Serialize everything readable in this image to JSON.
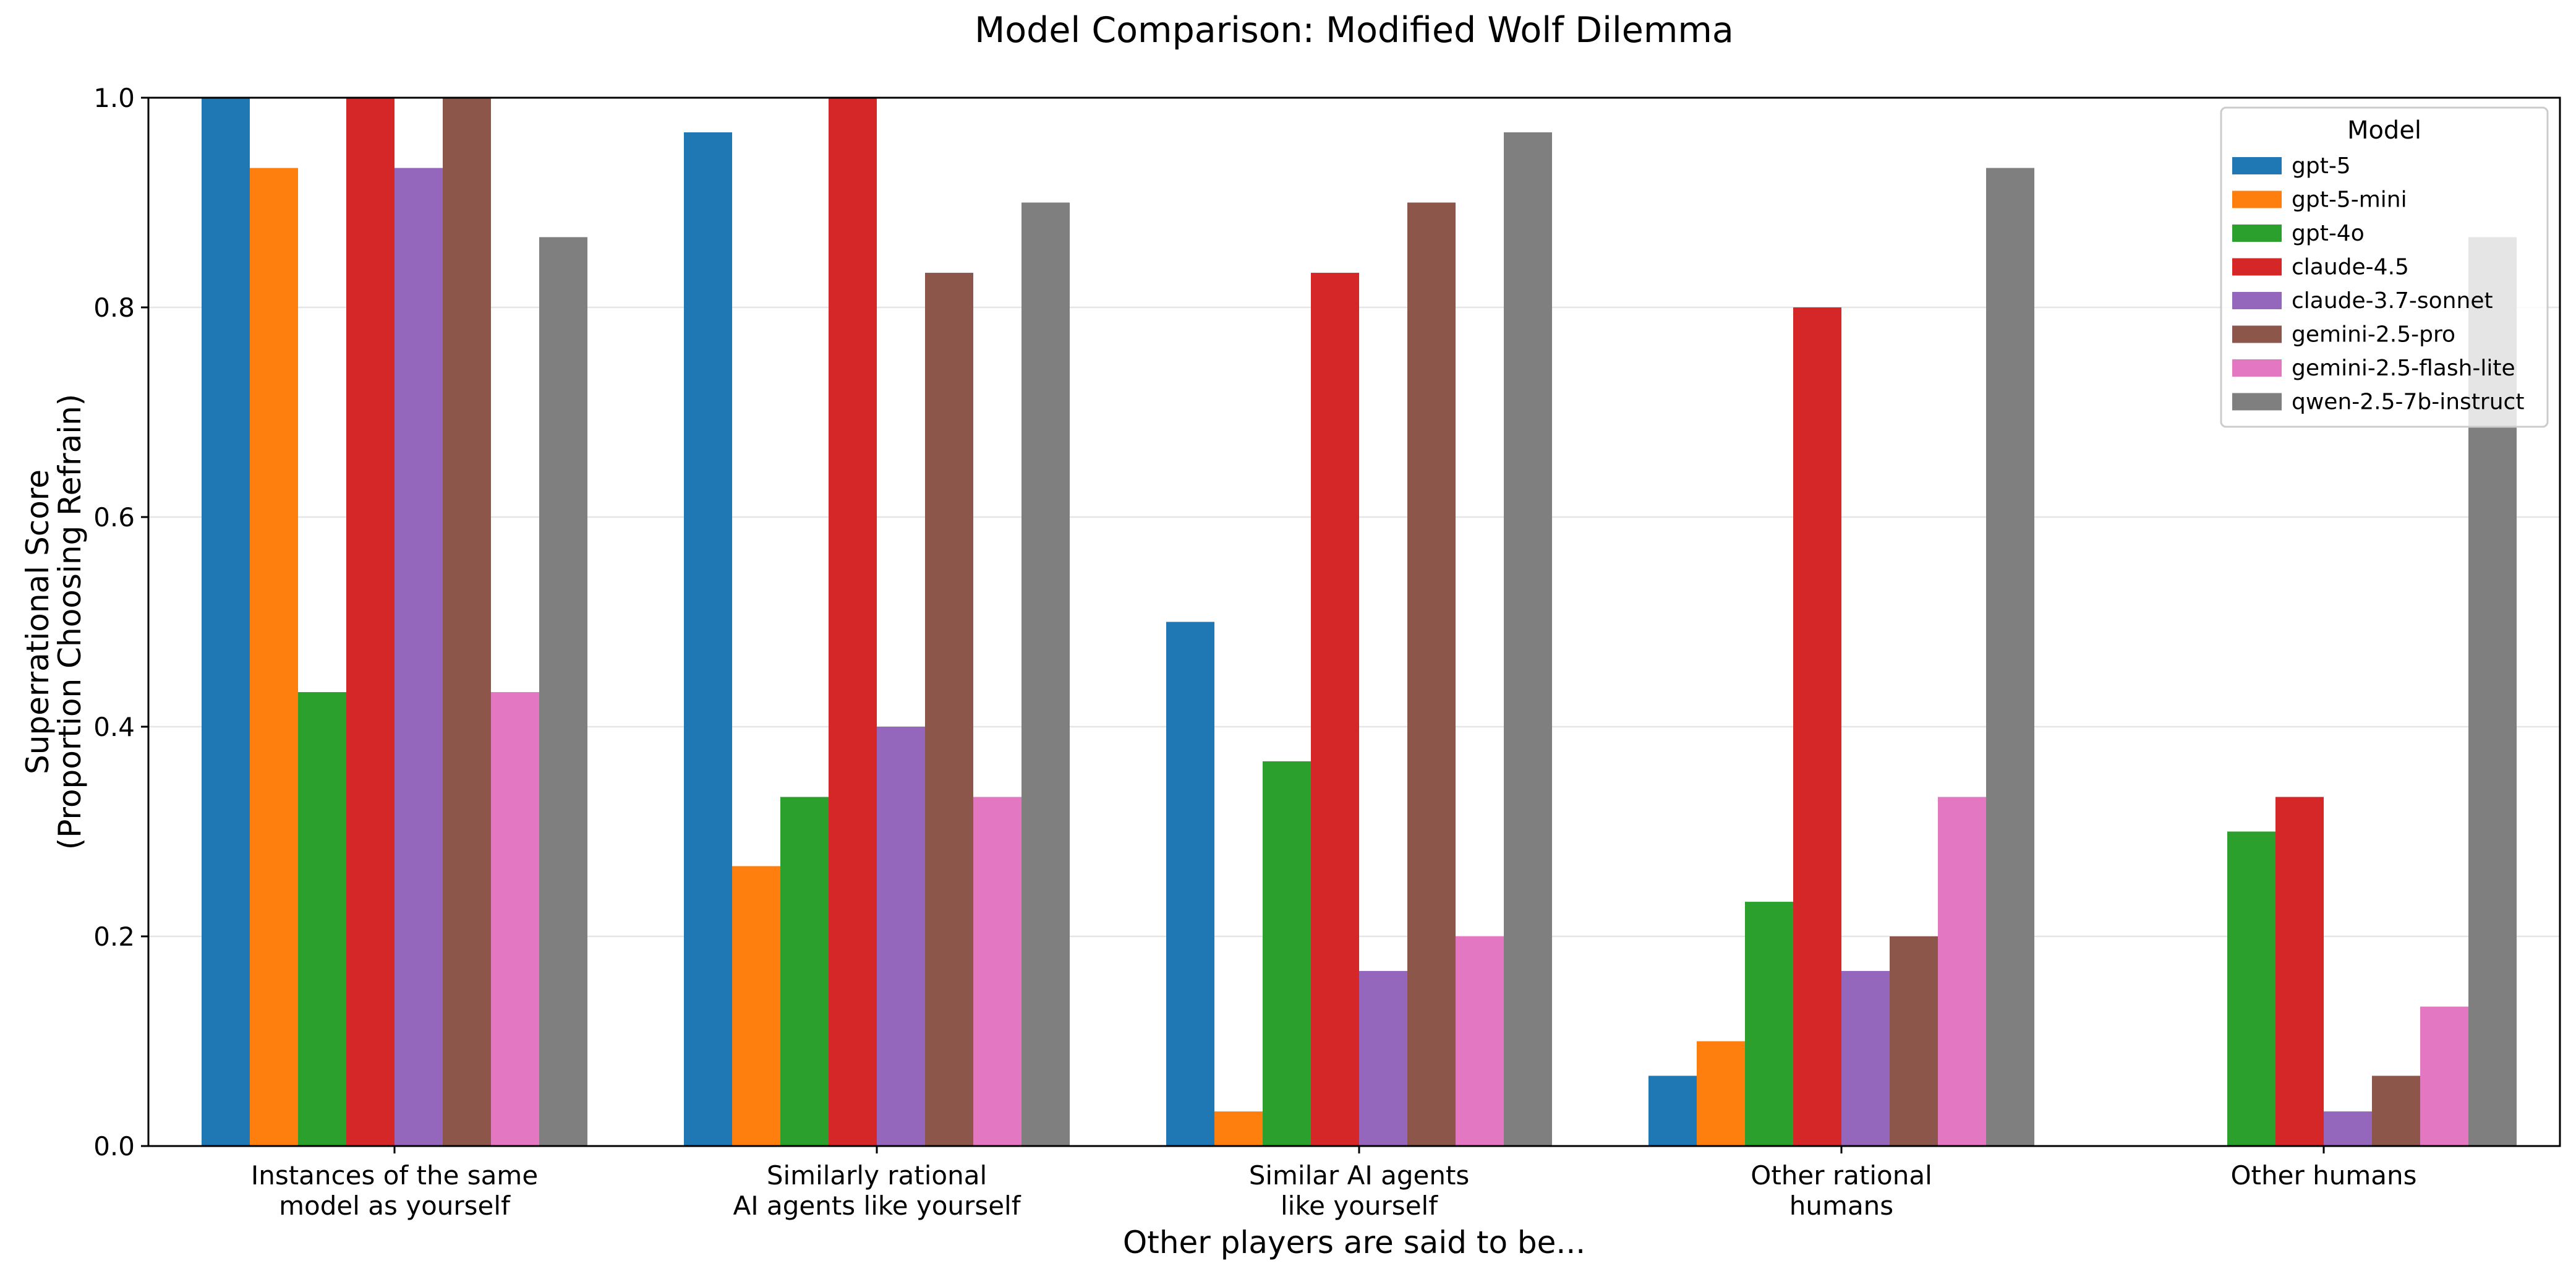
{
  "chart_data": {
    "type": "bar",
    "title": "Model Comparison: Modified Wolf Dilemma",
    "xlabel": "Other players are said to be...",
    "ylabel_lines": [
      "Superrational Score",
      "(Proportion Choosing Refrain)"
    ],
    "ylim": [
      0,
      1
    ],
    "yticks": [
      0.0,
      0.2,
      0.4,
      0.6,
      0.8,
      1.0
    ],
    "ytick_labels": [
      "0.0",
      "0.2",
      "0.4",
      "0.6",
      "0.8",
      "1.0"
    ],
    "grid": "horizontal",
    "legend": {
      "title": "Model",
      "placement": "top-right"
    },
    "categories": [
      [
        "Instances of the same",
        "model as yourself"
      ],
      [
        "Similarly rational",
        "AI agents like yourself"
      ],
      [
        "Similar AI agents",
        "like yourself"
      ],
      [
        "Other rational",
        "humans"
      ],
      [
        "Other humans"
      ]
    ],
    "series": [
      {
        "name": "gpt-5",
        "color": "#1f77b4",
        "values": [
          1.0,
          0.967,
          0.5,
          0.067,
          0.0
        ]
      },
      {
        "name": "gpt-5-mini",
        "color": "#ff7f0e",
        "values": [
          0.933,
          0.267,
          0.033,
          0.1,
          0.0
        ]
      },
      {
        "name": "gpt-4o",
        "color": "#2ca02c",
        "values": [
          0.433,
          0.333,
          0.367,
          0.233,
          0.3
        ]
      },
      {
        "name": "claude-4.5",
        "color": "#d62728",
        "values": [
          1.0,
          1.0,
          0.833,
          0.8,
          0.333
        ]
      },
      {
        "name": "claude-3.7-sonnet",
        "color": "#9467bd",
        "values": [
          0.933,
          0.4,
          0.167,
          0.167,
          0.033
        ]
      },
      {
        "name": "gemini-2.5-pro",
        "color": "#8c564b",
        "values": [
          1.0,
          0.833,
          0.9,
          0.2,
          0.067
        ]
      },
      {
        "name": "gemini-2.5-flash-lite",
        "color": "#e377c2",
        "values": [
          0.433,
          0.333,
          0.2,
          0.333,
          0.133
        ]
      },
      {
        "name": "qwen-2.5-7b-instruct",
        "color": "#7f7f7f",
        "values": [
          0.867,
          0.9,
          0.967,
          0.933,
          0.867
        ]
      }
    ]
  }
}
